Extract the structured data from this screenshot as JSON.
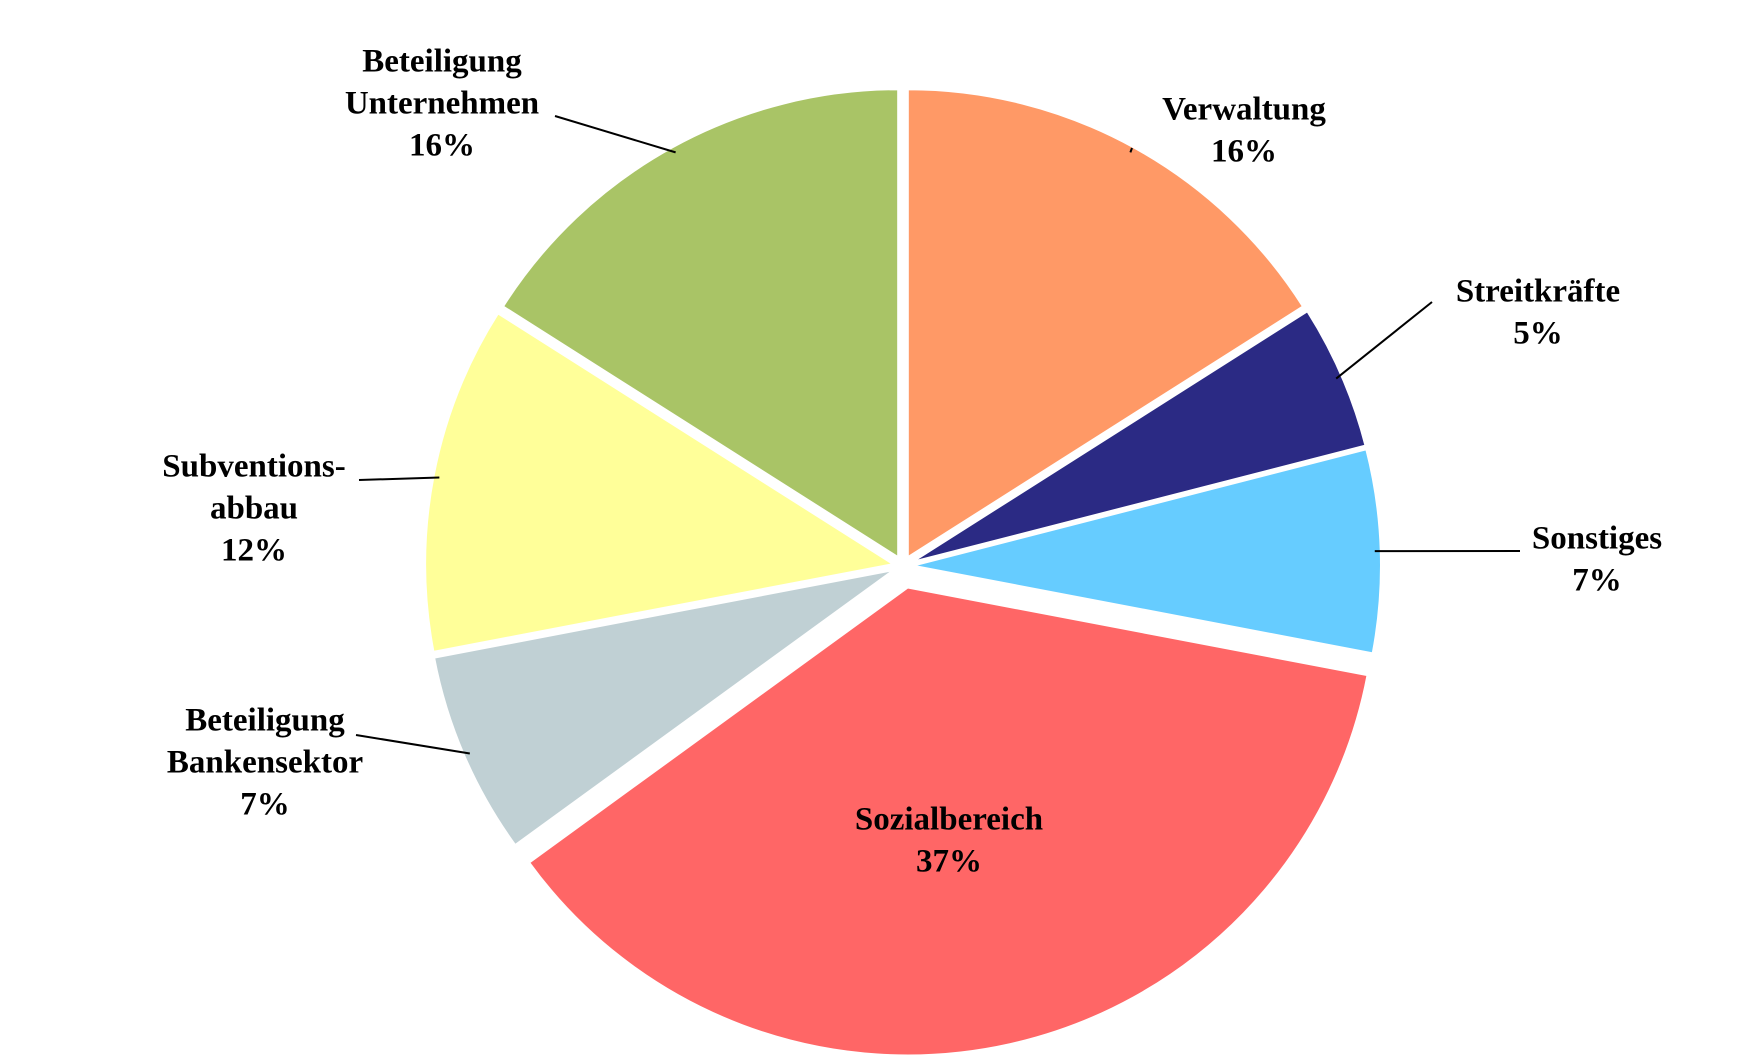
{
  "chart_data": {
    "type": "pie",
    "categories": [
      [
        "Verwaltung"
      ],
      [
        "Streitkräfte"
      ],
      [
        "Sonstiges"
      ],
      [
        "Sozialbereich"
      ],
      [
        "Beteiligung",
        "Bankensektor"
      ],
      [
        "Subventions-",
        "abbau"
      ],
      [
        "Beteiligung",
        "Unternehmen"
      ]
    ],
    "values": [
      16,
      5,
      7,
      37,
      7,
      12,
      16
    ],
    "value_labels": [
      "16%",
      "5%",
      "7%",
      "37%",
      "7%",
      "12%",
      "16%"
    ],
    "colors": [
      "#ff9966",
      "#2b2a84",
      "#66ccff",
      "#ff6666",
      "#c0d0d4",
      "#ffff99",
      "#a9c466"
    ]
  }
}
